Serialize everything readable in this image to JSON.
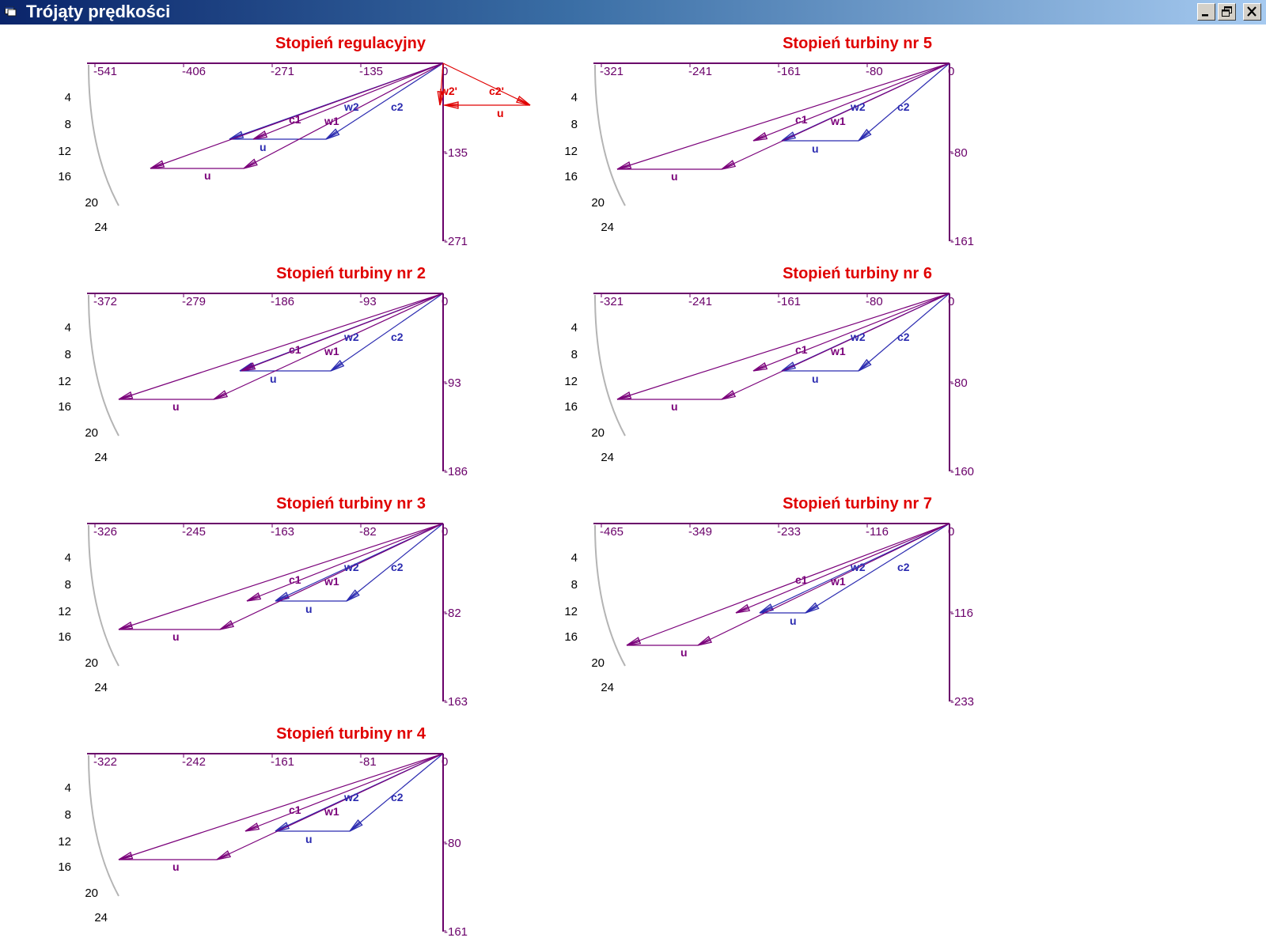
{
  "window": {
    "title": "Trójąty prędkości",
    "app_icon": "window-app-icon",
    "controls": [
      "minimize-icon",
      "restore-icon",
      "close-icon"
    ]
  },
  "colors": {
    "title_red": "#e00000",
    "axis": "#6a006a",
    "c_vec": "#2b2bb0",
    "w_vec": "#7a007a",
    "regulating_vec": "#e00000",
    "arc": "#b4b4b4"
  },
  "side_scale": [
    "4",
    "8",
    "12",
    "16",
    "20",
    "24"
  ],
  "diagrams": [
    {
      "title": "Stopień regulacyjny",
      "x_ticks": [
        "-541",
        "-406",
        "-271",
        "-135",
        "0"
      ],
      "y_ticks": [
        "-135",
        "-271"
      ],
      "vectors": {
        "c1": [
          -240,
          96
        ],
        "w1": [
          -124,
          96
        ],
        "c2": [
          -148,
          96
        ],
        "w2": [
          -270,
          96
        ],
        "deep": [
          -370,
          133
        ],
        "deep_u": [
          -118,
          0
        ]
      },
      "labels": {
        "c1": "c1",
        "w1": "w1",
        "c2": "c2",
        "w2": "w2",
        "u_upper": "u",
        "u_lower": "u"
      },
      "regulating": {
        "c2": [
          110,
          53
        ],
        "w2": [
          -4,
          53
        ],
        "u": [
          -114,
          0
        ],
        "labels": {
          "c2": "c2'",
          "w2": "w2'",
          "u": "u"
        }
      }
    },
    {
      "title": "Stopień turbiny nr 5",
      "x_ticks": [
        "-321",
        "-241",
        "-161",
        "-80",
        "0"
      ],
      "y_ticks": [
        "-80",
        "-161"
      ],
      "vectors": {
        "c1": [
          -248,
          98
        ],
        "w1": [
          -148,
          98
        ],
        "c2": [
          -115,
          98
        ],
        "w2": [
          -212,
          98
        ],
        "deep": [
          -420,
          134
        ],
        "deep_u": [
          -132,
          0
        ]
      },
      "labels": {
        "c1": "c1",
        "w1": "w1",
        "c2": "c2",
        "w2": "w2",
        "u_upper": "u",
        "u_lower": "u"
      }
    },
    {
      "title": "Stopień turbiny nr 2",
      "x_ticks": [
        "-372",
        "-279",
        "-186",
        "-93",
        "0"
      ],
      "y_ticks": [
        "-93",
        "-186"
      ],
      "vectors": {
        "c1": [
          -255,
          98
        ],
        "w1": [
          -138,
          98
        ],
        "c2": [
          -142,
          98
        ],
        "w2": [
          -257,
          98
        ],
        "deep": [
          -410,
          134
        ],
        "deep_u": [
          -120,
          0
        ]
      },
      "labels": {
        "c1": "c1",
        "w1": "w1",
        "c2": "c2",
        "w2": "w2",
        "u_upper": "u",
        "u_lower": "u"
      }
    },
    {
      "title": "Stopień turbiny nr 6",
      "x_ticks": [
        "-321",
        "-241",
        "-161",
        "-80",
        "0"
      ],
      "y_ticks": [
        "-80",
        "-160"
      ],
      "vectors": {
        "c1": [
          -248,
          98
        ],
        "w1": [
          -148,
          98
        ],
        "c2": [
          -115,
          98
        ],
        "w2": [
          -212,
          98
        ],
        "deep": [
          -420,
          134
        ],
        "deep_u": [
          -132,
          0
        ]
      },
      "labels": {
        "c1": "c1",
        "w1": "w1",
        "c2": "c2",
        "w2": "w2",
        "u_upper": "u",
        "u_lower": "u"
      }
    },
    {
      "title": "Stopień turbiny nr 3",
      "x_ticks": [
        "-326",
        "-245",
        "-163",
        "-82",
        "0"
      ],
      "y_ticks": [
        "-82",
        "-163"
      ],
      "vectors": {
        "c1": [
          -248,
          98
        ],
        "w1": [
          -136,
          98
        ],
        "c2": [
          -122,
          98
        ],
        "w2": [
          -212,
          98
        ],
        "deep": [
          -410,
          134
        ],
        "deep_u": [
          -128,
          0
        ]
      },
      "labels": {
        "c1": "c1",
        "w1": "w1",
        "c2": "c2",
        "w2": "w2",
        "u_upper": "u",
        "u_lower": "u"
      }
    },
    {
      "title": "Stopień turbiny nr 7",
      "x_ticks": [
        "-465",
        "-349",
        "-233",
        "-116",
        "0"
      ],
      "y_ticks": [
        "-116",
        "-233"
      ],
      "vectors": {
        "c1": [
          -270,
          113
        ],
        "w1": [
          -176,
          113
        ],
        "c2": [
          -182,
          113
        ],
        "w2": [
          -240,
          113
        ],
        "deep": [
          -408,
          154
        ],
        "deep_u": [
          -90,
          0
        ]
      },
      "labels": {
        "c1": "c1",
        "w1": "w1",
        "c2": "c2",
        "w2": "w2",
        "u_upper": "u",
        "u_lower": "u"
      }
    },
    {
      "title": "Stopień turbiny nr 4",
      "x_ticks": [
        "-322",
        "-242",
        "-161",
        "-81",
        "0"
      ],
      "y_ticks": [
        "-80",
        "-161"
      ],
      "vectors": {
        "c1": [
          -250,
          98
        ],
        "w1": [
          -134,
          98
        ],
        "c2": [
          -118,
          98
        ],
        "w2": [
          -212,
          98
        ],
        "deep": [
          -410,
          134
        ],
        "deep_u": [
          -124,
          0
        ]
      },
      "labels": {
        "c1": "c1",
        "w1": "w1",
        "c2": "c2",
        "w2": "w2",
        "u_upper": "u",
        "u_lower": "u"
      }
    }
  ]
}
